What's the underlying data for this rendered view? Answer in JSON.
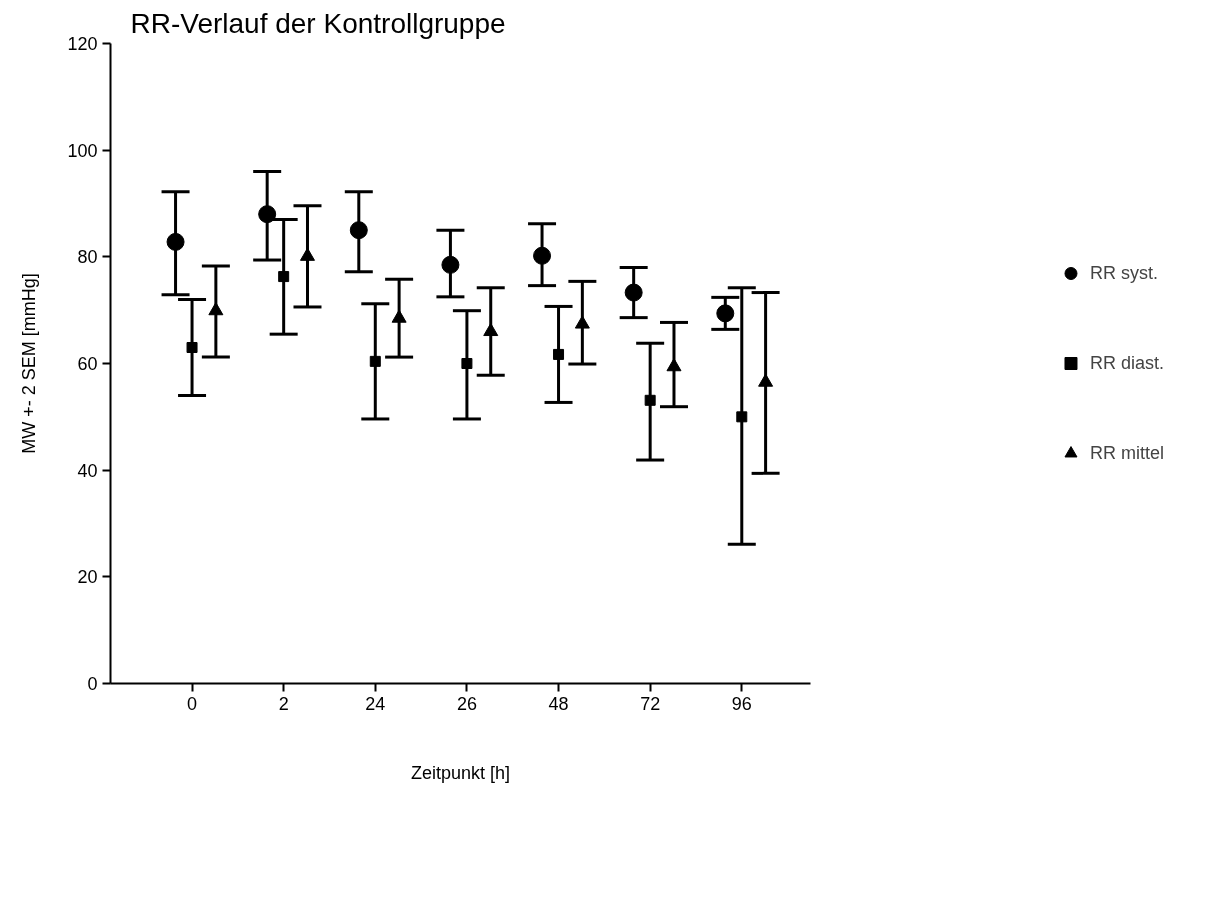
{
  "chart_data": {
    "type": "scatter",
    "title": "RR-Verlauf der Kontrollgruppe",
    "xlabel": "Zeitpunkt [h]",
    "ylabel": "MW +- 2 SEM [mmHg]",
    "categories": [
      "0",
      "2",
      "24",
      "26",
      "48",
      "72",
      "96"
    ],
    "series": [
      {
        "name": "RR syst.",
        "color": "#000000",
        "marker": "circle",
        "values": [
          82.8,
          88,
          85,
          78.5,
          80.2,
          73.3,
          69.4
        ],
        "errors": [
          [
            72.9,
            92.2
          ],
          [
            79.4,
            96
          ],
          [
            77.2,
            92.2
          ],
          [
            72.5,
            85
          ],
          [
            74.6,
            86.2
          ],
          [
            68.6,
            78
          ],
          [
            66.4,
            72.4
          ]
        ]
      },
      {
        "name": "RR diast.",
        "color": "#000000",
        "marker": "square",
        "values": [
          63,
          76.3,
          60.4,
          60,
          61.7,
          53.1,
          50
        ],
        "errors": [
          [
            54,
            72
          ],
          [
            65.5,
            87
          ],
          [
            49.6,
            71.2
          ],
          [
            49.6,
            69.9
          ],
          [
            52.7,
            70.7
          ],
          [
            41.9,
            63.8
          ],
          [
            26.1,
            74.2
          ]
        ]
      },
      {
        "name": "RR mittel",
        "color": "#000000",
        "marker": "triangle",
        "values": [
          69.9,
          80.1,
          68.5,
          66,
          67.4,
          59.4,
          56.5
        ],
        "errors": [
          [
            61.2,
            78.3
          ],
          [
            70.6,
            89.6
          ],
          [
            61.2,
            75.8
          ],
          [
            57.8,
            74.2
          ],
          [
            59.9,
            75.4
          ],
          [
            51.9,
            67.7
          ],
          [
            39.4,
            73.3
          ]
        ]
      }
    ],
    "ylim": [
      0,
      120
    ],
    "yticks": [
      0,
      20,
      40,
      60,
      80,
      100,
      120
    ],
    "grid": false,
    "legend": "right"
  }
}
